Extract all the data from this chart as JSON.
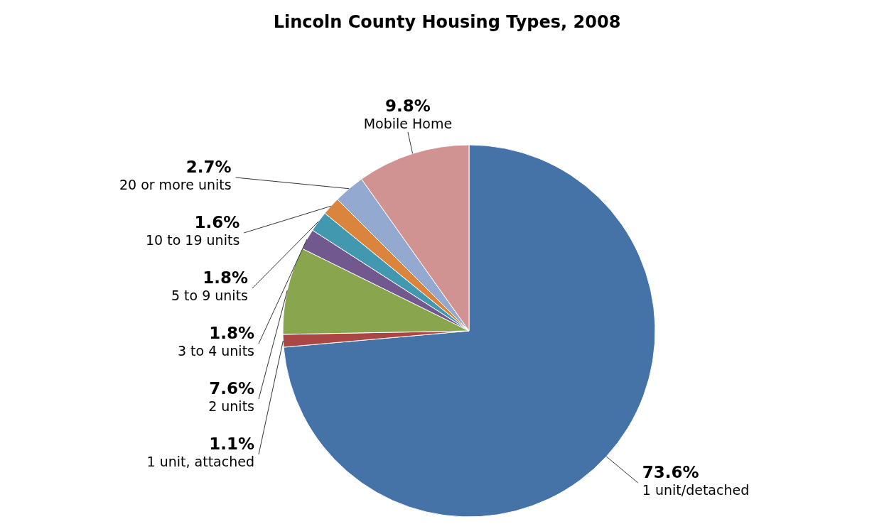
{
  "chart_data": {
    "type": "pie",
    "title": "Lincoln County Housing Types, 2008",
    "categories": [
      "1 unit/detached",
      "1 unit, attached",
      "2 units",
      "3 to 4 units",
      "5 to 9 units",
      "10 to 19 units",
      "20 or more units",
      "Mobile Home"
    ],
    "values": [
      73.6,
      1.1,
      7.6,
      1.8,
      1.8,
      1.6,
      2.7,
      9.8
    ],
    "colors": [
      "#4572a7",
      "#aa4643",
      "#89a54e",
      "#71588f",
      "#4198af",
      "#db843d",
      "#93a9cf",
      "#d19392"
    ],
    "value_labels": [
      "73.6%",
      "1.1%",
      "7.6%",
      "1.8%",
      "1.8%",
      "1.6%",
      "2.7%",
      "9.8%"
    ]
  }
}
